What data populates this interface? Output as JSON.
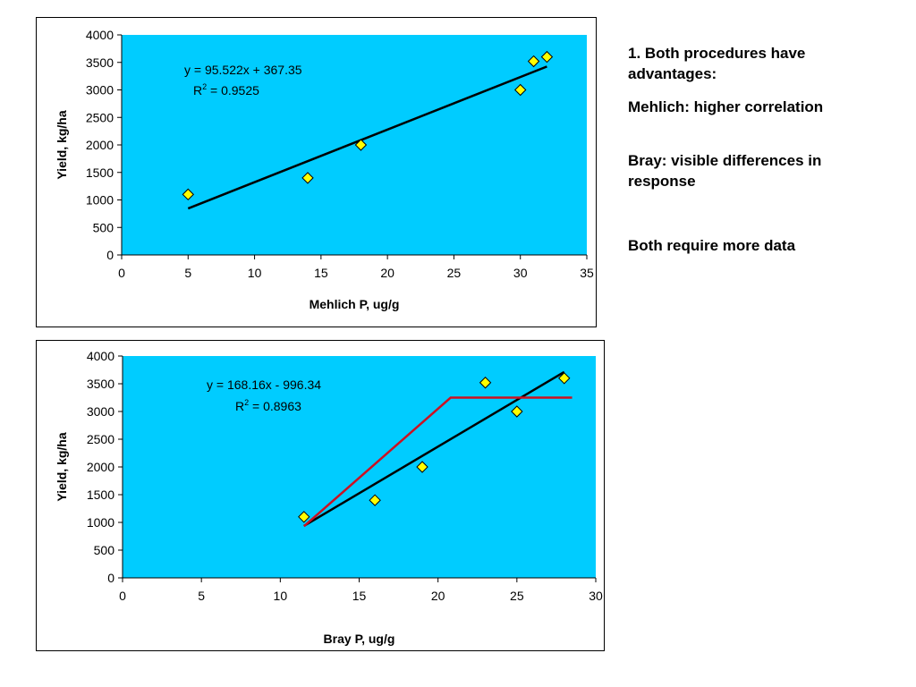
{
  "chart_data": [
    {
      "type": "scatter",
      "title": "",
      "xlabel": "Mehlich P, ug/g",
      "ylabel": "Yield, kg/ha",
      "xlim": [
        0,
        35
      ],
      "ylim": [
        0,
        4000
      ],
      "xticks": [
        0,
        5,
        10,
        15,
        20,
        25,
        30,
        35
      ],
      "yticks": [
        0,
        500,
        1000,
        1500,
        2000,
        2500,
        3000,
        3500,
        4000
      ],
      "grid": false,
      "plot_bg": "#00ccff",
      "series": [
        {
          "marker": "diamond",
          "color": "#ffff00",
          "x": [
            5,
            14,
            18,
            30,
            31,
            32
          ],
          "y": [
            1100,
            1400,
            2000,
            3000,
            3520,
            3600
          ]
        }
      ],
      "lines": [
        {
          "kind": "trendline",
          "color": "#000000",
          "x": [
            5,
            32
          ],
          "y": [
            845,
            3425
          ]
        }
      ],
      "equation": "y = 95.522x + 367.35",
      "r2_prefix": "R",
      "r2_sup": "2",
      "r2_value": " = 0.9525"
    },
    {
      "type": "scatter",
      "title": "",
      "xlabel": "Bray P, ug/g",
      "ylabel": "Yield, kg/ha",
      "xlim": [
        0,
        30
      ],
      "ylim": [
        0,
        4000
      ],
      "xticks": [
        0,
        5,
        10,
        15,
        20,
        25,
        30
      ],
      "yticks": [
        0,
        500,
        1000,
        1500,
        2000,
        2500,
        3000,
        3500,
        4000
      ],
      "grid": false,
      "plot_bg": "#00ccff",
      "series": [
        {
          "marker": "diamond",
          "color": "#ffff00",
          "x": [
            11.5,
            16,
            19,
            23,
            25,
            28
          ],
          "y": [
            1100,
            1400,
            2000,
            3520,
            3000,
            3600
          ]
        }
      ],
      "lines": [
        {
          "kind": "trendline",
          "color": "#000000",
          "x": [
            11.5,
            28
          ],
          "y": [
            937,
            3712
          ]
        },
        {
          "kind": "plateau",
          "color": "#cc1122",
          "x": [
            11.5,
            20.8,
            28.5
          ],
          "y": [
            930,
            3250,
            3250
          ]
        }
      ],
      "equation": "y = 168.16x - 996.34",
      "r2_prefix": "R",
      "r2_sup": "2",
      "r2_value": " = 0.8963"
    }
  ],
  "notes": {
    "line1": "1.  Both procedures have advantages:",
    "line2": "Mehlich:  higher correlation",
    "line3": "Bray: visible differences in response",
    "line4": "Both require more data"
  }
}
